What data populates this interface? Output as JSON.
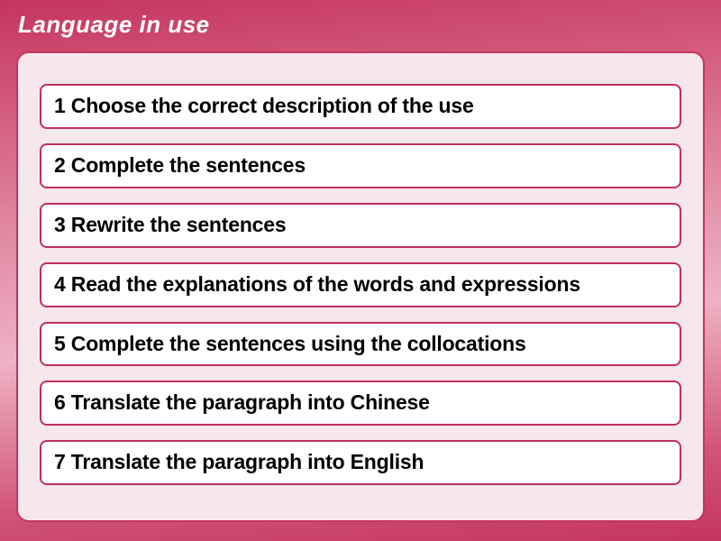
{
  "header": {
    "title": "Language in use"
  },
  "items": [
    "1 Choose the correct description of the use",
    "2 Complete the sentences",
    "3 Rewrite the sentences",
    "4 Read the explanations of the words and expressions",
    "5 Complete the sentences using the collocations",
    "6 Translate the paragraph into Chinese",
    "7 Translate the paragraph into English"
  ],
  "style": {
    "background_gradient": [
      "#c43560",
      "#d15478",
      "#e18ba5",
      "#eeb2c4",
      "#d15478",
      "#c43560"
    ],
    "panel_background": "#f6e6ed",
    "panel_border": "#c43560",
    "item_background": "#ffffff",
    "item_border": "#c02f5c",
    "header_text_color": "#ffffff",
    "item_text_color": "#000000",
    "header_fontsize": 26,
    "item_fontsize": 23,
    "panel_radius": 14,
    "item_radius": 8
  }
}
